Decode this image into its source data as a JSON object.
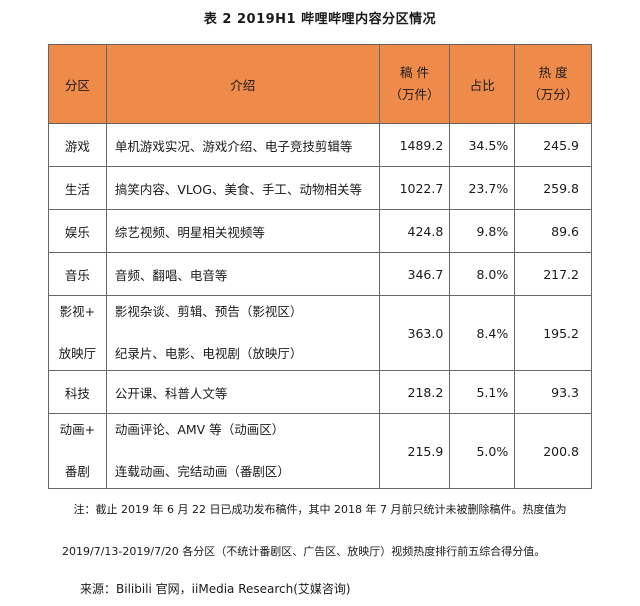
{
  "title": "表 2   2019H1 哔哩哔哩内容分区情况",
  "headers": {
    "zone": "分区",
    "intro": "介绍",
    "posts_line1": "稿 件",
    "posts_line2": "（万件）",
    "share": "占比",
    "heat_line1": "热 度",
    "heat_line2": "（万分）"
  },
  "rows": [
    {
      "zone": "游戏",
      "intro": "单机游戏实况、游戏介绍、电子竞技剪辑等",
      "posts": "1489.2",
      "share": "34.5%",
      "heat": "245.9"
    },
    {
      "zone": "生活",
      "intro": "搞笑内容、VLOG、美食、手工、动物相关等",
      "posts": "1022.7",
      "share": "23.7%",
      "heat": "259.8"
    },
    {
      "zone": "娱乐",
      "intro": "综艺视频、明星相关视频等",
      "posts": "424.8",
      "share": "9.8%",
      "heat": "89.6"
    },
    {
      "zone": "音乐",
      "intro": "音频、翻唱、电音等",
      "posts": "346.7",
      "share": "8.0%",
      "heat": "217.2"
    },
    {
      "zone_line1": "影视+",
      "zone_line2": "放映厅",
      "intro_line1": "影视杂谈、剪辑、预告（影视区）",
      "intro_line2": "纪录片、电影、电视剧（放映厅）",
      "posts": "363.0",
      "share": "8.4%",
      "heat": "195.2"
    },
    {
      "zone": "科技",
      "intro": "公开课、科普人文等",
      "posts": "218.2",
      "share": "5.1%",
      "heat": "93.3"
    },
    {
      "zone_line1": "动画+",
      "zone_line2": "番剧",
      "intro_line1": "动画评论、AMV 等（动画区）",
      "intro_line2": "连载动画、完结动画（番剧区）",
      "posts": "215.9",
      "share": "5.0%",
      "heat": "200.8"
    }
  ],
  "note_line1": "注：截止 2019 年 6 月 22 日已成功发布稿件，其中 2018 年 7 月前只统计未被删除稿件。热度值为",
  "note_line2": "2019/7/13-2019/7/20 各分区（不统计番剧区、广告区、放映厅）视频热度排行前五综合得分值。",
  "source": "来源：Bilibili 官网，iiMedia Research(艾媒咨询)",
  "colors": {
    "header_bg": "#ee8a4a",
    "border": "#666666"
  }
}
